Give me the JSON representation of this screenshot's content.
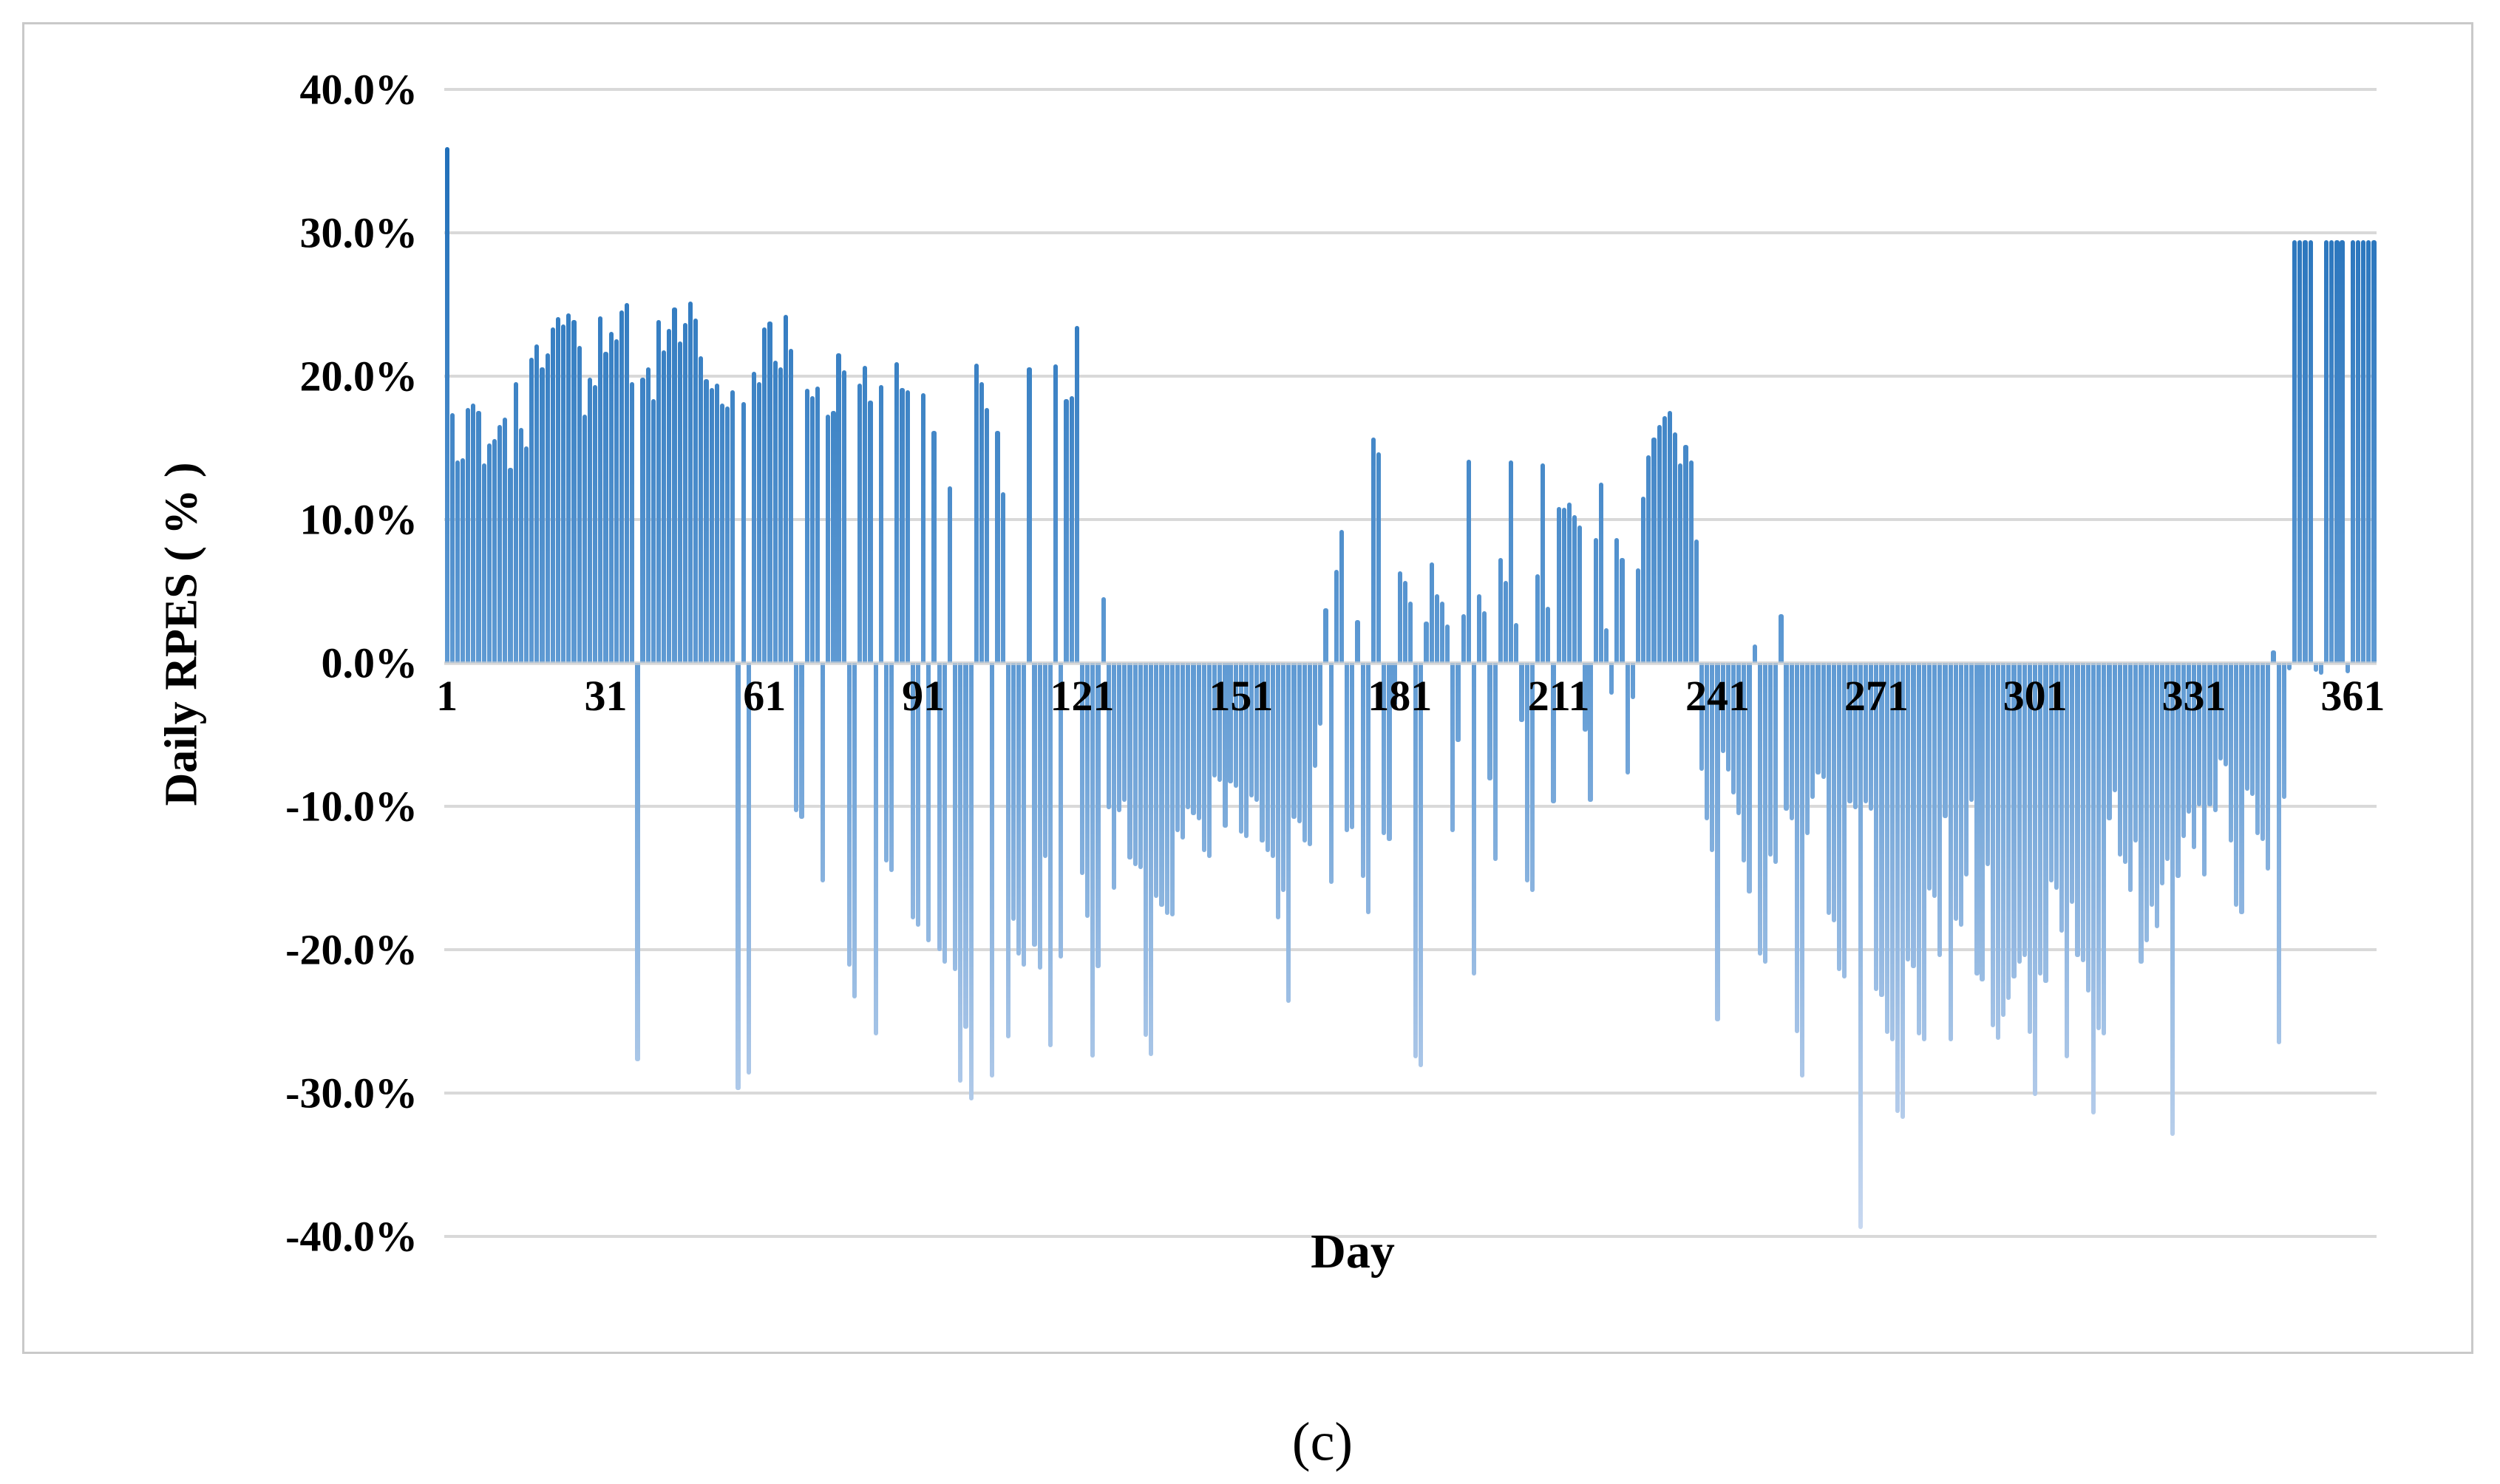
{
  "figure": {
    "caption": "(c)"
  },
  "colors": {
    "bar_gradient_top": "#1467B4",
    "bar_gradient_zero": "#5F9AD3",
    "bar_gradient_bottom": "#CCDAF1",
    "gridline": "#D9D9D9",
    "axis_text": "#000000",
    "figure_border": "#C9C9C9",
    "background": "#FFFFFF"
  },
  "chart_data": {
    "type": "bar",
    "title": "",
    "xlabel": "Day",
    "ylabel": "Daily RPES ( % )",
    "x_range": [
      1,
      365
    ],
    "ylim": [
      -40,
      40
    ],
    "grid": true,
    "legend": "none",
    "x_ticks": [
      1,
      31,
      61,
      91,
      121,
      151,
      181,
      211,
      241,
      271,
      301,
      331,
      361
    ],
    "y_tick_values": [
      40,
      30,
      20,
      10,
      0,
      -10,
      -20,
      -30,
      -40
    ],
    "y_tick_labels": [
      "40.0%",
      "30.0%",
      "20.0%",
      "10.0%",
      "0.0%",
      "-10.0%",
      "-20.0%",
      "-30.0%",
      "-40.0%"
    ],
    "series": [
      {
        "name": "Daily RPES",
        "unit": "%",
        "values": [
          36.0,
          17.4,
          14.1,
          14.3,
          17.8,
          18.1,
          17.6,
          13.9,
          15.3,
          15.6,
          16.6,
          17.1,
          13.6,
          19.6,
          16.4,
          15.1,
          21.3,
          22.2,
          20.6,
          21.6,
          23.4,
          24.1,
          23.6,
          24.4,
          23.9,
          22.1,
          17.3,
          19.9,
          19.4,
          24.2,
          21.7,
          23.1,
          22.6,
          24.6,
          25.1,
          19.6,
          -27.8,
          19.9,
          20.6,
          18.4,
          23.9,
          21.8,
          23.3,
          24.8,
          22.4,
          23.7,
          25.2,
          24.0,
          21.4,
          19.8,
          19.2,
          19.5,
          18.1,
          17.9,
          19.0,
          -29.8,
          18.2,
          -28.7,
          20.3,
          19.6,
          23.4,
          23.8,
          21.1,
          20.6,
          24.3,
          21.9,
          -10.4,
          -10.9,
          19.1,
          18.6,
          19.3,
          -15.3,
          17.3,
          17.6,
          21.6,
          20.4,
          -21.2,
          -23.4,
          19.5,
          20.7,
          18.3,
          -26.0,
          19.4,
          -13.9,
          -14.6,
          21.0,
          19.2,
          19.0,
          -17.9,
          -18.4,
          18.8,
          -19.5,
          16.2,
          -20.1,
          -21.0,
          12.3,
          -21.5,
          -29.3,
          -25.5,
          -30.5,
          20.9,
          19.6,
          17.8,
          -28.9,
          16.2,
          11.9,
          -26.2,
          -18.0,
          -20.4,
          -21.2,
          20.6,
          -19.8,
          -21.4,
          -13.6,
          -26.8,
          20.8,
          -20.6,
          18.4,
          18.6,
          23.5,
          -14.8,
          -17.8,
          -27.5,
          -21.3,
          4.6,
          -10.2,
          -15.8,
          -10.4,
          -9.7,
          -13.7,
          -14.2,
          -14.4,
          -26.1,
          -27.4,
          -16.4,
          -17.0,
          -17.6,
          -17.7,
          -11.8,
          -12.3,
          -10.2,
          -10.6,
          -11.0,
          -13.2,
          -13.6,
          -8.0,
          -8.3,
          -11.5,
          -8.4,
          -8.7,
          -11.9,
          -12.2,
          -9.4,
          -9.7,
          -12.5,
          -13.2,
          -13.6,
          -17.9,
          -16.0,
          -23.7,
          -10.9,
          -11.2,
          -12.5,
          -12.8,
          -7.3,
          -4.4,
          3.8,
          -15.4,
          6.5,
          9.3,
          -11.8,
          -11.6,
          3.0,
          -15.0,
          -17.5,
          15.7,
          14.7,
          -12.0,
          -12.4,
          -3.0,
          6.4,
          5.7,
          4.3,
          -27.6,
          -28.2,
          2.9,
          7.0,
          4.8,
          4.3,
          2.7,
          -11.8,
          -5.5,
          3.4,
          14.2,
          -21.8,
          4.8,
          3.6,
          -8.2,
          -13.8,
          7.3,
          5.7,
          14.1,
          2.8,
          -4.1,
          -15.3,
          -16.0,
          6.2,
          13.9,
          3.9,
          -9.8,
          10.9,
          10.8,
          11.2,
          10.3,
          9.6,
          -4.8,
          -9.7,
          8.7,
          12.6,
          2.4,
          -2.2,
          8.7,
          7.3,
          -7.8,
          -2.5,
          6.6,
          11.6,
          14.5,
          15.7,
          16.6,
          17.2,
          17.6,
          16.1,
          13.9,
          15.2,
          14.1,
          8.6,
          -7.5,
          -11.0,
          -13.2,
          -25.0,
          -6.3,
          -7.6,
          -9.2,
          -10.6,
          -13.9,
          -16.1,
          1.3,
          -20.4,
          -21.0,
          -13.5,
          -14.0,
          3.4,
          -10.3,
          -11.0,
          -25.8,
          -28.9,
          -12.0,
          -9.5,
          -7.8,
          -8.1,
          -17.6,
          -18.1,
          -21.5,
          -22.0,
          -9.8,
          -10.2,
          -39.5,
          -9.8,
          -10.3,
          -22.9,
          -23.3,
          -25.9,
          -26.4,
          -31.4,
          -31.8,
          -20.8,
          -21.3,
          -26.0,
          -26.4,
          -15.9,
          -16.4,
          -20.5,
          -10.8,
          -26.4,
          -18.0,
          -18.4,
          -14.9,
          -9.7,
          -21.8,
          -22.2,
          -14.2,
          -25.4,
          -26.3,
          -24.7,
          -23.5,
          -22.0,
          -21.0,
          -20.5,
          -25.9,
          -30.2,
          -21.8,
          -22.3,
          -15.3,
          -15.8,
          -18.8,
          -27.6,
          -16.8,
          -20.5,
          -20.9,
          -23.0,
          -31.5,
          -25.6,
          -26.0,
          -11.0,
          -9.0,
          -13.5,
          -14.0,
          -16.0,
          -12.5,
          -21.0,
          -19.5,
          -17.0,
          -18.5,
          -15.5,
          -13.8,
          -33.0,
          -15.0,
          -12.2,
          -10.5,
          -13.0,
          -10.0,
          -14.9,
          -10.0,
          -10.4,
          -6.8,
          -7.2,
          -12.5,
          -17.0,
          -17.5,
          -8.9,
          -9.3,
          -12.0,
          -12.4,
          -14.5,
          0.9,
          -26.6,
          -9.5,
          -0.5,
          29.5,
          29.5,
          29.5,
          29.5,
          -0.6,
          -0.8,
          29.5,
          29.5,
          29.5,
          29.5,
          -0.7,
          29.5,
          29.5,
          29.5,
          29.5,
          29.5
        ]
      }
    ]
  }
}
